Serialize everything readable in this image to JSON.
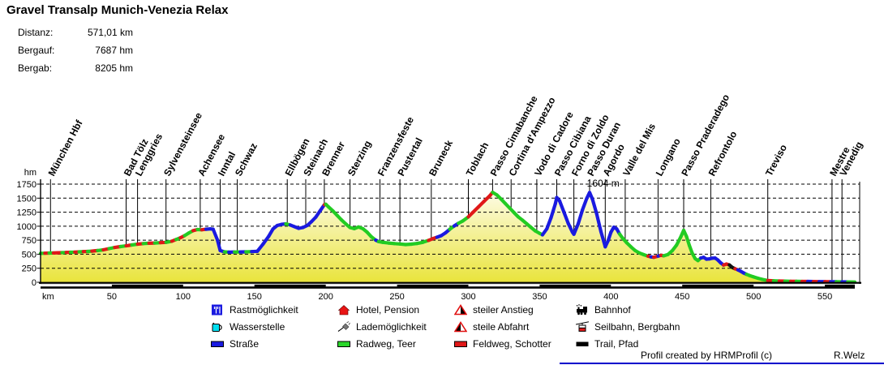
{
  "header": {
    "title": "Gravel Transalp Munich-Venezia Relax",
    "stats": [
      {
        "label": "Distanz:",
        "value": "571,01 km"
      },
      {
        "label": "Bergauf:",
        "value": "7687 hm"
      },
      {
        "label": "Bergab:",
        "value": "8205 hm"
      }
    ]
  },
  "chart_data": {
    "type": "area",
    "x_axis": {
      "label": "km",
      "ticks": [
        50,
        100,
        150,
        200,
        250,
        300,
        350,
        400,
        450,
        500,
        550
      ],
      "range": [
        0,
        575
      ]
    },
    "y_axis": {
      "label": "hm",
      "ticks": [
        0,
        250,
        500,
        750,
        1000,
        1250,
        1500,
        1750
      ],
      "range": [
        0,
        1750
      ]
    },
    "max_elevation_annotation": {
      "text": "1604 m",
      "km": 382,
      "color": "#e02020"
    },
    "surface_colors": {
      "g": "#22cc22",
      "r": "#e01818",
      "b": "#1a1ae0",
      "k": "#111111"
    },
    "surface_legend": {
      "g": "Radweg, Teer",
      "r": "Feldweg, Schotter",
      "b": "Straße",
      "k": "Trail, Pfad"
    },
    "waypoints": [
      {
        "name": "München Hbf",
        "km": 7
      },
      {
        "name": "Bad Tölz",
        "km": 60
      },
      {
        "name": "Lenggries",
        "km": 68
      },
      {
        "name": "Sylvensteinsee",
        "km": 88
      },
      {
        "name": "Achensee",
        "km": 112
      },
      {
        "name": "Inntal",
        "km": 126
      },
      {
        "name": "Schwaz",
        "km": 138
      },
      {
        "name": "Ellbögen",
        "km": 173
      },
      {
        "name": "Steinach",
        "km": 186
      },
      {
        "name": "Brenner",
        "km": 199
      },
      {
        "name": "Sterzing",
        "km": 217
      },
      {
        "name": "Franzensfeste",
        "km": 238
      },
      {
        "name": "Pustertal",
        "km": 252
      },
      {
        "name": "Bruneck",
        "km": 274
      },
      {
        "name": "Toblach",
        "km": 300
      },
      {
        "name": "Passo Cimabanche",
        "km": 317
      },
      {
        "name": "Cortina d'Ampezzo",
        "km": 330
      },
      {
        "name": "Vodo di Cadore",
        "km": 348
      },
      {
        "name": "Passo Cibiana",
        "km": 362
      },
      {
        "name": "Forno di Zoldo",
        "km": 374
      },
      {
        "name": "Passo Duran",
        "km": 385
      },
      {
        "name": "Agordo",
        "km": 396
      },
      {
        "name": "Valle del Mis",
        "km": 410
      },
      {
        "name": "Longano",
        "km": 433
      },
      {
        "name": "Passo Praderadego",
        "km": 451
      },
      {
        "name": "Refrontolo",
        "km": 470
      },
      {
        "name": "Treviso",
        "km": 510
      },
      {
        "name": "Mestre",
        "km": 555
      },
      {
        "name": "Venedig",
        "km": 562
      }
    ],
    "profile": [
      [
        0,
        515,
        "g"
      ],
      [
        3,
        518,
        "g"
      ],
      [
        6,
        520,
        "r"
      ],
      [
        9,
        522,
        "g"
      ],
      [
        12,
        526,
        "r"
      ],
      [
        15,
        528,
        "r"
      ],
      [
        18,
        532,
        "g"
      ],
      [
        21,
        535,
        "r"
      ],
      [
        24,
        538,
        "g"
      ],
      [
        27,
        542,
        "r"
      ],
      [
        30,
        546,
        "g"
      ],
      [
        33,
        550,
        "r"
      ],
      [
        36,
        556,
        "g"
      ],
      [
        40,
        566,
        "r"
      ],
      [
        44,
        578,
        "g"
      ],
      [
        48,
        600,
        "r"
      ],
      [
        52,
        620,
        "g"
      ],
      [
        56,
        636,
        "r"
      ],
      [
        60,
        650,
        "g"
      ],
      [
        64,
        666,
        "r"
      ],
      [
        68,
        680,
        "g"
      ],
      [
        72,
        690,
        "r"
      ],
      [
        76,
        696,
        "g"
      ],
      [
        80,
        700,
        "r"
      ],
      [
        84,
        706,
        "g"
      ],
      [
        88,
        712,
        "r"
      ],
      [
        92,
        732,
        "g"
      ],
      [
        95,
        762,
        "r"
      ],
      [
        98,
        792,
        "g"
      ],
      [
        101,
        832,
        "r"
      ],
      [
        104,
        880,
        "g"
      ],
      [
        107,
        920,
        "g"
      ],
      [
        110,
        940,
        "r"
      ],
      [
        113,
        936,
        "g"
      ],
      [
        116,
        946,
        "r"
      ],
      [
        119,
        952,
        "b"
      ],
      [
        121,
        946,
        "b"
      ],
      [
        124,
        760,
        "b"
      ],
      [
        126,
        565,
        "b"
      ],
      [
        129,
        542,
        "b"
      ],
      [
        132,
        537,
        "g"
      ],
      [
        136,
        539,
        "b"
      ],
      [
        140,
        541,
        "g"
      ],
      [
        144,
        543,
        "b"
      ],
      [
        148,
        546,
        "g"
      ],
      [
        152,
        552,
        "b"
      ],
      [
        156,
        680,
        "b"
      ],
      [
        160,
        820,
        "b"
      ],
      [
        163,
        950,
        "b"
      ],
      [
        166,
        1012,
        "b"
      ],
      [
        169,
        1032,
        "b"
      ],
      [
        172,
        1042,
        "b"
      ],
      [
        175,
        1022,
        "g"
      ],
      [
        178,
        992,
        "b"
      ],
      [
        181,
        962,
        "b"
      ],
      [
        184,
        976,
        "b"
      ],
      [
        187,
        1012,
        "b"
      ],
      [
        190,
        1082,
        "b"
      ],
      [
        193,
        1162,
        "b"
      ],
      [
        196,
        1272,
        "b"
      ],
      [
        199,
        1382,
        "b"
      ],
      [
        200,
        1392,
        "r"
      ],
      [
        202,
        1342,
        "g"
      ],
      [
        205,
        1272,
        "g"
      ],
      [
        208,
        1192,
        "g"
      ],
      [
        211,
        1112,
        "g"
      ],
      [
        214,
        1042,
        "g"
      ],
      [
        217,
        976,
        "g"
      ],
      [
        220,
        956,
        "g"
      ],
      [
        223,
        986,
        "g"
      ],
      [
        226,
        956,
        "g"
      ],
      [
        229,
        892,
        "g"
      ],
      [
        232,
        812,
        "g"
      ],
      [
        235,
        752,
        "g"
      ],
      [
        237,
        726,
        "b"
      ],
      [
        240,
        712,
        "g"
      ],
      [
        244,
        700,
        "g"
      ],
      [
        248,
        690,
        "g"
      ],
      [
        252,
        682,
        "g"
      ],
      [
        256,
        672,
        "g"
      ],
      [
        260,
        680,
        "g"
      ],
      [
        264,
        692,
        "g"
      ],
      [
        268,
        712,
        "g"
      ],
      [
        272,
        746,
        "g"
      ],
      [
        275,
        776,
        "r"
      ],
      [
        278,
        802,
        "r"
      ],
      [
        281,
        832,
        "b"
      ],
      [
        284,
        882,
        "b"
      ],
      [
        287,
        946,
        "b"
      ],
      [
        290,
        1002,
        "g"
      ],
      [
        293,
        1052,
        "b"
      ],
      [
        296,
        1092,
        "g"
      ],
      [
        300,
        1166,
        "g"
      ],
      [
        303,
        1242,
        "r"
      ],
      [
        307,
        1342,
        "r"
      ],
      [
        311,
        1442,
        "r"
      ],
      [
        315,
        1542,
        "r"
      ],
      [
        317,
        1604,
        "r"
      ],
      [
        320,
        1556,
        "g"
      ],
      [
        323,
        1482,
        "g"
      ],
      [
        326,
        1402,
        "g"
      ],
      [
        329,
        1322,
        "g"
      ],
      [
        332,
        1242,
        "g"
      ],
      [
        335,
        1166,
        "g"
      ],
      [
        338,
        1106,
        "g"
      ],
      [
        341,
        1042,
        "g"
      ],
      [
        344,
        976,
        "g"
      ],
      [
        347,
        916,
        "g"
      ],
      [
        350,
        872,
        "g"
      ],
      [
        352,
        846,
        "g"
      ],
      [
        355,
        952,
        "b"
      ],
      [
        358,
        1152,
        "b"
      ],
      [
        361,
        1402,
        "b"
      ],
      [
        362,
        1512,
        "b"
      ],
      [
        364,
        1452,
        "b"
      ],
      [
        367,
        1252,
        "b"
      ],
      [
        370,
        1052,
        "b"
      ],
      [
        373,
        892,
        "b"
      ],
      [
        374,
        856,
        "b"
      ],
      [
        377,
        1042,
        "b"
      ],
      [
        380,
        1292,
        "b"
      ],
      [
        383,
        1492,
        "b"
      ],
      [
        385,
        1601,
        "b"
      ],
      [
        387,
        1482,
        "b"
      ],
      [
        390,
        1222,
        "b"
      ],
      [
        393,
        902,
        "b"
      ],
      [
        396,
        632,
        "b"
      ],
      [
        398,
        742,
        "b"
      ],
      [
        400,
        892,
        "b"
      ],
      [
        402,
        982,
        "b"
      ],
      [
        404,
        952,
        "b"
      ],
      [
        406,
        862,
        "b"
      ],
      [
        408,
        792,
        "g"
      ],
      [
        411,
        706,
        "g"
      ],
      [
        414,
        632,
        "g"
      ],
      [
        417,
        566,
        "g"
      ],
      [
        420,
        522,
        "g"
      ],
      [
        423,
        492,
        "g"
      ],
      [
        426,
        466,
        "g"
      ],
      [
        428,
        452,
        "r"
      ],
      [
        430,
        446,
        "b"
      ],
      [
        433,
        466,
        "r"
      ],
      [
        435,
        482,
        "b"
      ],
      [
        437,
        472,
        "r"
      ],
      [
        440,
        496,
        "g"
      ],
      [
        443,
        562,
        "g"
      ],
      [
        446,
        662,
        "g"
      ],
      [
        449,
        812,
        "g"
      ],
      [
        451,
        926,
        "g"
      ],
      [
        453,
        816,
        "g"
      ],
      [
        455,
        656,
        "g"
      ],
      [
        457,
        516,
        "g"
      ],
      [
        459,
        422,
        "g"
      ],
      [
        461,
        386,
        "g"
      ],
      [
        463,
        432,
        "g"
      ],
      [
        465,
        446,
        "b"
      ],
      [
        467,
        412,
        "b"
      ],
      [
        469,
        416,
        "b"
      ],
      [
        471,
        430,
        "b"
      ],
      [
        473,
        432,
        "b"
      ],
      [
        475,
        396,
        "b"
      ],
      [
        477,
        346,
        "b"
      ],
      [
        479,
        306,
        "b"
      ],
      [
        481,
        326,
        "r"
      ],
      [
        483,
        310,
        "r"
      ],
      [
        485,
        266,
        "k"
      ],
      [
        487,
        242,
        "k"
      ],
      [
        489,
        222,
        "r"
      ],
      [
        491,
        196,
        "b"
      ],
      [
        493,
        166,
        "b"
      ],
      [
        495,
        142,
        "b"
      ],
      [
        497,
        122,
        "g"
      ],
      [
        500,
        96,
        "g"
      ],
      [
        503,
        72,
        "g"
      ],
      [
        506,
        52,
        "g"
      ],
      [
        510,
        32,
        "g"
      ],
      [
        514,
        26,
        "r"
      ],
      [
        518,
        22,
        "g"
      ],
      [
        522,
        20,
        "r"
      ],
      [
        526,
        18,
        "g"
      ],
      [
        530,
        17,
        "r"
      ],
      [
        534,
        15,
        "g"
      ],
      [
        538,
        14,
        "r"
      ],
      [
        542,
        13,
        "b"
      ],
      [
        546,
        12,
        "r"
      ],
      [
        550,
        12,
        "b"
      ],
      [
        554,
        10,
        "r"
      ],
      [
        558,
        9,
        "b"
      ],
      [
        562,
        7,
        "g"
      ],
      [
        566,
        6,
        "b"
      ],
      [
        571,
        5,
        "g"
      ]
    ]
  },
  "legend": {
    "items": [
      {
        "label": "Rastmöglichkeit",
        "icon": "restaurant-icon"
      },
      {
        "label": "Wasserstelle",
        "icon": "water-icon"
      },
      {
        "label": "Straße",
        "icon": "road-icon"
      },
      {
        "label": "Hotel, Pension",
        "icon": "hotel-icon"
      },
      {
        "label": "Lademöglichkeit",
        "icon": "charging-icon"
      },
      {
        "label": "Radweg, Teer",
        "icon": "cycleway-icon"
      },
      {
        "label": "steiler Anstieg",
        "icon": "steep-climb-icon"
      },
      {
        "label": "steile Abfahrt",
        "icon": "steep-descent-icon"
      },
      {
        "label": "Feldweg, Schotter",
        "icon": "gravel-icon"
      },
      {
        "label": "Bahnhof",
        "icon": "railway-icon"
      },
      {
        "label": "Seilbahn, Bergbahn",
        "icon": "cablecar-icon"
      },
      {
        "label": "Trail, Pfad",
        "icon": "trail-icon"
      }
    ]
  },
  "footer": {
    "credit": "Profil created by HRMProfil (c)",
    "author": "R.Welz"
  }
}
